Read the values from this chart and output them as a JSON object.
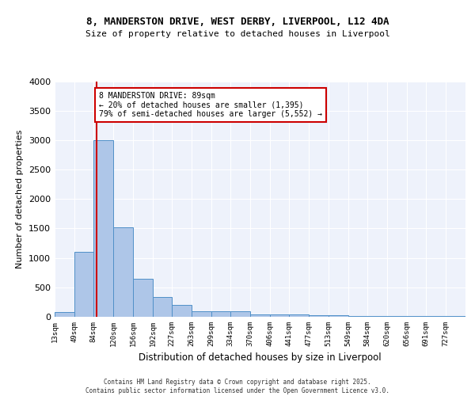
{
  "title1": "8, MANDERSTON DRIVE, WEST DERBY, LIVERPOOL, L12 4DA",
  "title2": "Size of property relative to detached houses in Liverpool",
  "xlabel": "Distribution of detached houses by size in Liverpool",
  "ylabel": "Number of detached properties",
  "bin_labels": [
    "13sqm",
    "49sqm",
    "84sqm",
    "120sqm",
    "156sqm",
    "192sqm",
    "227sqm",
    "263sqm",
    "299sqm",
    "334sqm",
    "370sqm",
    "406sqm",
    "441sqm",
    "477sqm",
    "513sqm",
    "549sqm",
    "584sqm",
    "620sqm",
    "656sqm",
    "691sqm",
    "727sqm"
  ],
  "bin_edges": [
    13,
    49,
    84,
    120,
    156,
    192,
    227,
    263,
    299,
    334,
    370,
    406,
    441,
    477,
    513,
    549,
    584,
    620,
    656,
    691,
    727,
    763
  ],
  "bar_values": [
    75,
    1100,
    3000,
    1525,
    650,
    340,
    205,
    100,
    95,
    95,
    45,
    40,
    35,
    30,
    25,
    20,
    18,
    15,
    12,
    10,
    8
  ],
  "bar_color": "#aec6e8",
  "bar_edge_color": "#5090c8",
  "property_size": 89,
  "vline_color": "#cc0000",
  "annotation_text": "8 MANDERSTON DRIVE: 89sqm\n← 20% of detached houses are smaller (1,395)\n79% of semi-detached houses are larger (5,552) →",
  "annotation_box_color": "#cc0000",
  "annotation_text_color": "#000000",
  "background_color": "#eef2fb",
  "grid_color": "#ffffff",
  "footer_text": "Contains HM Land Registry data © Crown copyright and database right 2025.\nContains public sector information licensed under the Open Government Licence v3.0.",
  "ylim": [
    0,
    4000
  ],
  "yticks": [
    0,
    500,
    1000,
    1500,
    2000,
    2500,
    3000,
    3500,
    4000
  ]
}
